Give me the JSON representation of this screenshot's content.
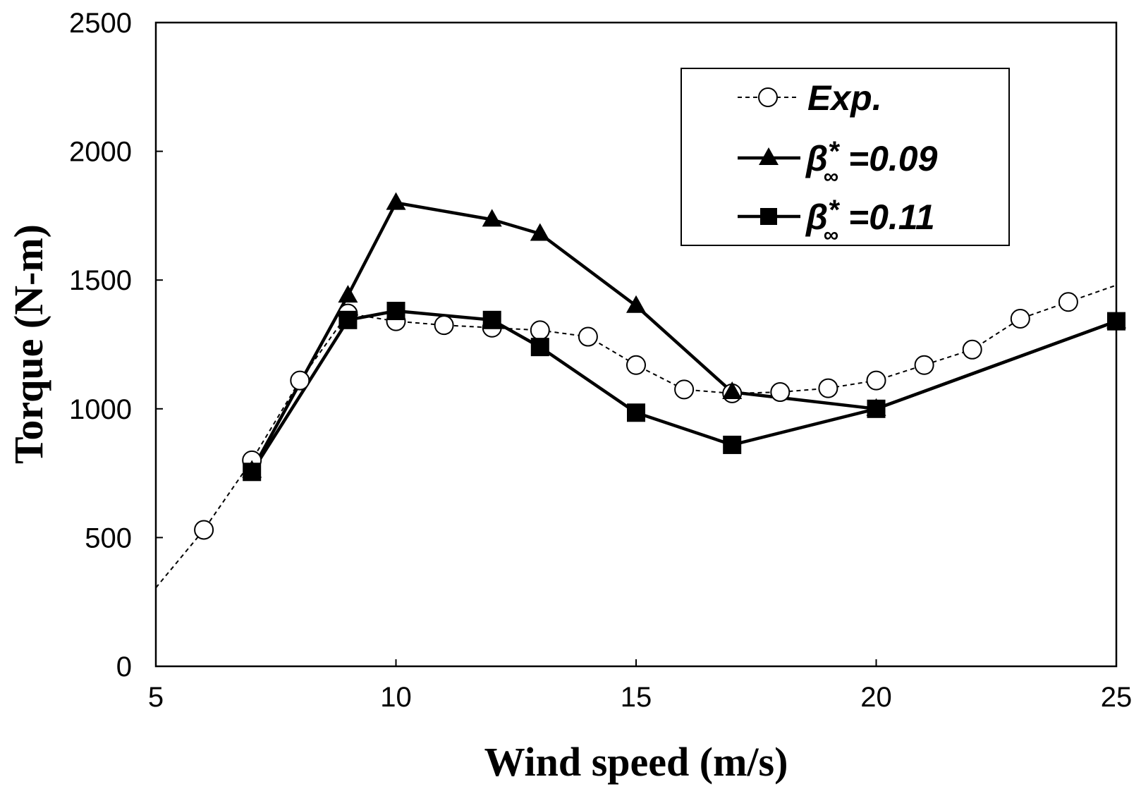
{
  "chart_data": {
    "type": "line",
    "title": "",
    "xlabel": "Wind speed (m/s)",
    "ylabel": "Torque (N-m)",
    "xlim": [
      5,
      25
    ],
    "ylim": [
      0,
      2500
    ],
    "xticks": [
      5,
      10,
      15,
      20,
      25
    ],
    "yticks": [
      0,
      500,
      1000,
      1500,
      2000,
      2500
    ],
    "grid": false,
    "legend_position": "top-right",
    "series": [
      {
        "name": "Exp.",
        "style": "dashed",
        "marker": "circle-open",
        "color": "#000000",
        "x": [
          6,
          7,
          8,
          9,
          10,
          11,
          12,
          13,
          14,
          15,
          16,
          17,
          18,
          19,
          20,
          21,
          22,
          23,
          24
        ],
        "y": [
          530,
          800,
          1110,
          1370,
          1340,
          1325,
          1315,
          1305,
          1280,
          1170,
          1075,
          1060,
          1065,
          1080,
          1110,
          1170,
          1230,
          1350,
          1415
        ],
        "trend_start": {
          "x": 5,
          "y": 305
        },
        "trend_end": {
          "x": 25,
          "y": 1480
        }
      },
      {
        "name": "β*∞ =0.09",
        "legend_main": "β",
        "legend_sup": "*",
        "legend_sub": "∞",
        "legend_suffix": " =0.09",
        "style": "solid",
        "marker": "triangle-filled",
        "color": "#000000",
        "x": [
          7,
          9,
          10,
          12,
          13,
          15,
          17,
          20,
          25
        ],
        "y": [
          760,
          1440,
          1800,
          1735,
          1680,
          1400,
          1065,
          1000,
          1340
        ]
      },
      {
        "name": "β*∞ =0.11",
        "legend_main": "β",
        "legend_sup": "*",
        "legend_sub": "∞",
        "legend_suffix": " =0.11",
        "style": "solid",
        "marker": "square-filled",
        "color": "#000000",
        "x": [
          7,
          9,
          10,
          12,
          13,
          15,
          17,
          20,
          25
        ],
        "y": [
          755,
          1345,
          1380,
          1345,
          1240,
          985,
          860,
          1000,
          1340
        ]
      }
    ]
  }
}
